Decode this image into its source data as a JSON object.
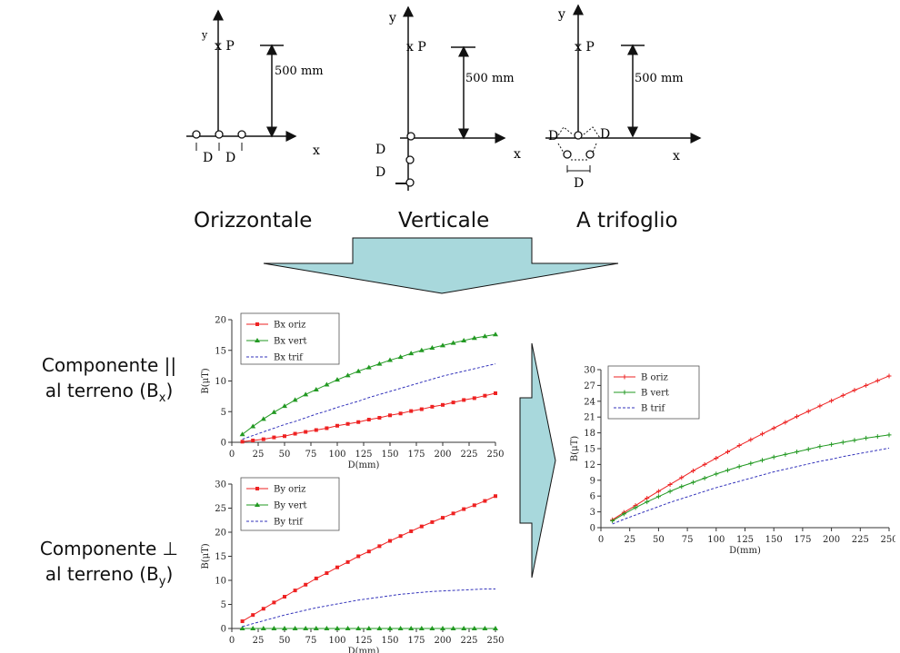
{
  "configs": [
    {
      "label": "Orizzontale",
      "dist": "500 mm",
      "axis_x": "x",
      "axis_y": "y",
      "point": "x P",
      "d": "D"
    },
    {
      "label": "Verticale",
      "dist": "500 mm",
      "axis_x": "x",
      "axis_y": "y",
      "point": "x P",
      "d": "D"
    },
    {
      "label": "A trifoglio",
      "dist": "500 mm",
      "axis_x": "x",
      "axis_y": "y",
      "point": "x P",
      "d": "D"
    }
  ],
  "labels": {
    "parallel_line1": "Componente ||",
    "parallel_line2": "al terreno (B",
    "parallel_sub": "x",
    "perp_line1": "Componente ⊥",
    "perp_line2": "al terreno (B",
    "perp_sub": "y",
    "close": ")"
  },
  "chart_data": [
    {
      "type": "line",
      "xlabel": "D(mm)",
      "ylabel": "B(μT)",
      "xlim": [
        0,
        250
      ],
      "ylim": [
        0,
        20
      ],
      "xticks": [
        0,
        25,
        50,
        75,
        100,
        125,
        150,
        175,
        200,
        225,
        250
      ],
      "yticks": [
        0,
        5,
        10,
        15,
        20
      ],
      "x": [
        10,
        20,
        30,
        40,
        50,
        60,
        70,
        80,
        90,
        100,
        110,
        120,
        130,
        140,
        150,
        160,
        170,
        180,
        190,
        200,
        210,
        220,
        230,
        240,
        250
      ],
      "series": [
        {
          "name": "Bx oriz",
          "color": "#ee2222",
          "marker": "square",
          "style": "solid",
          "values": [
            0.1,
            0.3,
            0.5,
            0.8,
            1.0,
            1.4,
            1.7,
            2.0,
            2.3,
            2.7,
            3.0,
            3.3,
            3.7,
            4.0,
            4.4,
            4.7,
            5.1,
            5.4,
            5.8,
            6.1,
            6.5,
            6.9,
            7.2,
            7.6,
            8.0
          ]
        },
        {
          "name": "Bx vert",
          "color": "#229922",
          "marker": "triangle",
          "style": "solid",
          "values": [
            1.3,
            2.6,
            3.8,
            4.9,
            5.9,
            6.9,
            7.8,
            8.6,
            9.4,
            10.2,
            10.9,
            11.6,
            12.2,
            12.8,
            13.4,
            13.9,
            14.5,
            15.0,
            15.4,
            15.8,
            16.2,
            16.6,
            17.0,
            17.3,
            17.6
          ]
        },
        {
          "name": "Bx trif",
          "color": "#3333bb",
          "marker": "none",
          "style": "dashed",
          "values": [
            0.5,
            1.1,
            1.7,
            2.3,
            2.9,
            3.4,
            4.0,
            4.6,
            5.1,
            5.7,
            6.2,
            6.7,
            7.3,
            7.8,
            8.3,
            8.8,
            9.3,
            9.8,
            10.3,
            10.8,
            11.2,
            11.6,
            12.0,
            12.4,
            12.8
          ]
        }
      ]
    },
    {
      "type": "line",
      "xlabel": "D(mm)",
      "ylabel": "B(μT)",
      "xlim": [
        0,
        250
      ],
      "ylim": [
        0,
        30
      ],
      "xticks": [
        0,
        25,
        50,
        75,
        100,
        125,
        150,
        175,
        200,
        225,
        250
      ],
      "yticks": [
        0,
        5,
        10,
        15,
        20,
        25,
        30
      ],
      "x": [
        10,
        20,
        30,
        40,
        50,
        60,
        70,
        80,
        90,
        100,
        110,
        120,
        130,
        140,
        150,
        160,
        170,
        180,
        190,
        200,
        210,
        220,
        230,
        240,
        250
      ],
      "series": [
        {
          "name": "By oriz",
          "color": "#ee2222",
          "marker": "square",
          "style": "solid",
          "values": [
            1.5,
            2.8,
            4.1,
            5.4,
            6.6,
            7.9,
            9.1,
            10.4,
            11.5,
            12.7,
            13.8,
            15.0,
            16.0,
            17.1,
            18.2,
            19.2,
            20.2,
            21.2,
            22.1,
            23.0,
            23.9,
            24.8,
            25.6,
            26.5,
            27.5
          ]
        },
        {
          "name": "By vert",
          "color": "#229922",
          "marker": "triangle",
          "style": "solid",
          "values": [
            0,
            0,
            0,
            0,
            0,
            0,
            0,
            0,
            0,
            0,
            0,
            0,
            0,
            0,
            0,
            0,
            0,
            0,
            0,
            0,
            0,
            0,
            0,
            0,
            0
          ]
        },
        {
          "name": "By trif",
          "color": "#3333bb",
          "marker": "none",
          "style": "dashed",
          "values": [
            0.4,
            1.0,
            1.6,
            2.2,
            2.8,
            3.3,
            3.8,
            4.3,
            4.7,
            5.1,
            5.5,
            5.9,
            6.2,
            6.5,
            6.8,
            7.1,
            7.3,
            7.5,
            7.7,
            7.8,
            7.9,
            8.0,
            8.1,
            8.2,
            8.2
          ]
        }
      ]
    },
    {
      "type": "line",
      "xlabel": "D(mm)",
      "ylabel": "B(μT)",
      "xlim": [
        0,
        250
      ],
      "ylim": [
        0,
        30
      ],
      "xticks": [
        0,
        25,
        50,
        75,
        100,
        125,
        150,
        175,
        200,
        225,
        250
      ],
      "yticks": [
        0,
        3,
        6,
        9,
        12,
        15,
        18,
        21,
        24,
        27,
        30
      ],
      "x": [
        10,
        20,
        30,
        40,
        50,
        60,
        70,
        80,
        90,
        100,
        110,
        120,
        130,
        140,
        150,
        160,
        170,
        180,
        190,
        200,
        210,
        220,
        230,
        240,
        250
      ],
      "series": [
        {
          "name": "B oriz",
          "color": "#ee2222",
          "marker": "plus",
          "style": "solid",
          "values": [
            1.5,
            2.9,
            4.2,
            5.6,
            6.9,
            8.2,
            9.5,
            10.8,
            12.0,
            13.2,
            14.4,
            15.6,
            16.7,
            17.8,
            18.9,
            20.0,
            21.1,
            22.1,
            23.1,
            24.1,
            25.1,
            26.1,
            27.0,
            27.9,
            28.8
          ]
        },
        {
          "name": "B vert",
          "color": "#229922",
          "marker": "plus",
          "style": "solid",
          "values": [
            1.3,
            2.6,
            3.8,
            4.9,
            5.9,
            6.9,
            7.8,
            8.6,
            9.4,
            10.2,
            10.9,
            11.6,
            12.2,
            12.8,
            13.4,
            13.9,
            14.4,
            14.9,
            15.4,
            15.8,
            16.2,
            16.6,
            17.0,
            17.3,
            17.6
          ]
        },
        {
          "name": "B trif",
          "color": "#3333bb",
          "marker": "none",
          "style": "dashed",
          "values": [
            0.7,
            1.6,
            2.4,
            3.2,
            4.0,
            4.8,
            5.5,
            6.2,
            6.9,
            7.6,
            8.2,
            8.8,
            9.4,
            10.0,
            10.6,
            11.1,
            11.6,
            12.1,
            12.6,
            13.0,
            13.5,
            13.9,
            14.3,
            14.7,
            15.1
          ]
        }
      ]
    }
  ]
}
